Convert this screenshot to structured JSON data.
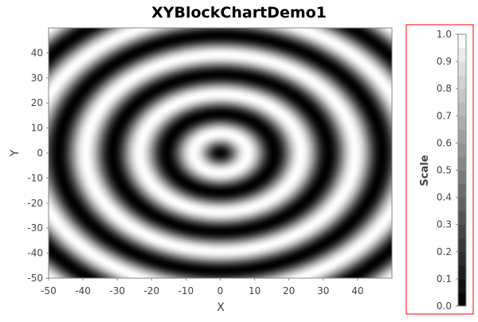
{
  "chart_data": {
    "type": "heatmap",
    "title": "XYBlockChartDemo1",
    "xlabel": "X",
    "ylabel": "Y",
    "xlim": [
      -50,
      50
    ],
    "ylim": [
      -50,
      50
    ],
    "x_ticks": [
      "-50",
      "-40",
      "-30",
      "-20",
      "-10",
      "0",
      "10",
      "20",
      "30",
      "40"
    ],
    "y_ticks": [
      "-50",
      "-40",
      "-30",
      "-20",
      "-10",
      "0",
      "10",
      "20",
      "30",
      "40"
    ],
    "grid": false,
    "block_size": 1,
    "function": "z = sin(sqrt(x^2 + y^2) / 5)^2, so z is the same along each circle around (0,0)",
    "z_range": [
      0,
      1
    ],
    "colormap": "grayscale (0 = black, 1 = white)",
    "colorbar": {
      "title": "Scale",
      "range": [
        0,
        1
      ],
      "ticks": [
        "0.0",
        "0.1",
        "0.2",
        "0.3",
        "0.4",
        "0.5",
        "0.6",
        "0.7",
        "0.8",
        "0.9",
        "1.0"
      ],
      "steps": 20,
      "border_color": "#ff0000",
      "position": "right"
    },
    "colors": {
      "plot_border": "#888888",
      "text": "#444444",
      "title": "#000000"
    }
  }
}
